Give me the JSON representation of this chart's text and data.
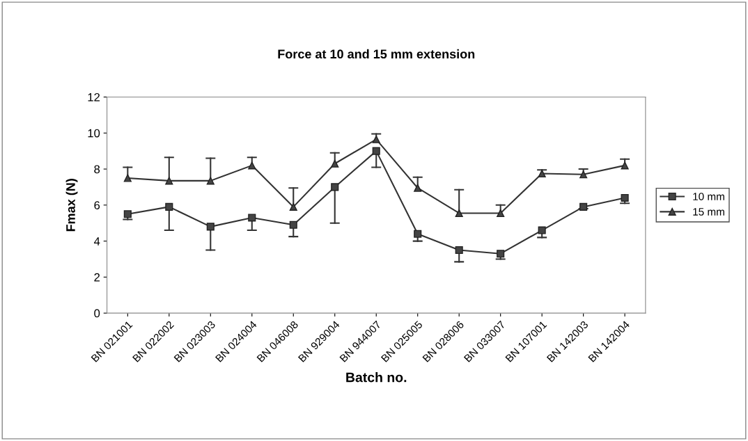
{
  "chart_data": {
    "type": "line",
    "title": "Force at 10 and 15 mm extension",
    "xlabel": "Batch no.",
    "ylabel": "Fmax (N)",
    "categories": [
      "BN 021001",
      "BN 022002",
      "BN 023003",
      "BN 024004",
      "BN 046008",
      "BN 929004",
      "BN 944007",
      "BN 025005",
      "BN 028006",
      "BN 033007",
      "BN 107001",
      "BN 142003",
      "BN 142004"
    ],
    "series": [
      {
        "name": "10 mm",
        "color": "#333333",
        "marker": "square",
        "values": [
          5.5,
          5.9,
          4.8,
          5.3,
          4.9,
          7.0,
          9.0,
          4.4,
          3.5,
          3.3,
          4.6,
          5.9,
          6.4
        ],
        "errors": [
          [
            5.2,
            5.5
          ],
          [
            4.6,
            5.9
          ],
          [
            3.5,
            4.8
          ],
          [
            4.6,
            5.3
          ],
          [
            4.25,
            4.9
          ],
          [
            5.0,
            7.0
          ],
          [
            8.1,
            9.0
          ],
          [
            4.0,
            4.4
          ],
          [
            2.85,
            3.5
          ],
          [
            3.0,
            3.3
          ],
          [
            4.2,
            4.6
          ],
          [
            5.8,
            5.9
          ],
          [
            6.1,
            6.4
          ]
        ]
      },
      {
        "name": "15 mm",
        "color": "#333333",
        "marker": "triangle",
        "values": [
          7.5,
          7.35,
          7.35,
          8.2,
          5.9,
          8.3,
          9.65,
          6.95,
          5.55,
          5.55,
          7.75,
          7.7,
          8.2
        ],
        "errors": [
          [
            7.5,
            8.1
          ],
          [
            7.35,
            8.65
          ],
          [
            7.35,
            8.6
          ],
          [
            8.2,
            8.65
          ],
          [
            5.9,
            6.95
          ],
          [
            8.3,
            8.9
          ],
          [
            9.65,
            9.95
          ],
          [
            6.95,
            7.55
          ],
          [
            5.55,
            6.85
          ],
          [
            5.55,
            6.0
          ],
          [
            7.75,
            7.95
          ],
          [
            7.7,
            8.0
          ],
          [
            8.2,
            8.55
          ]
        ]
      }
    ],
    "ylim": [
      0,
      12
    ],
    "yticks": [
      0,
      2,
      4,
      6,
      8,
      10,
      12
    ],
    "grid": false,
    "legend": "right",
    "line_style": "solid"
  }
}
